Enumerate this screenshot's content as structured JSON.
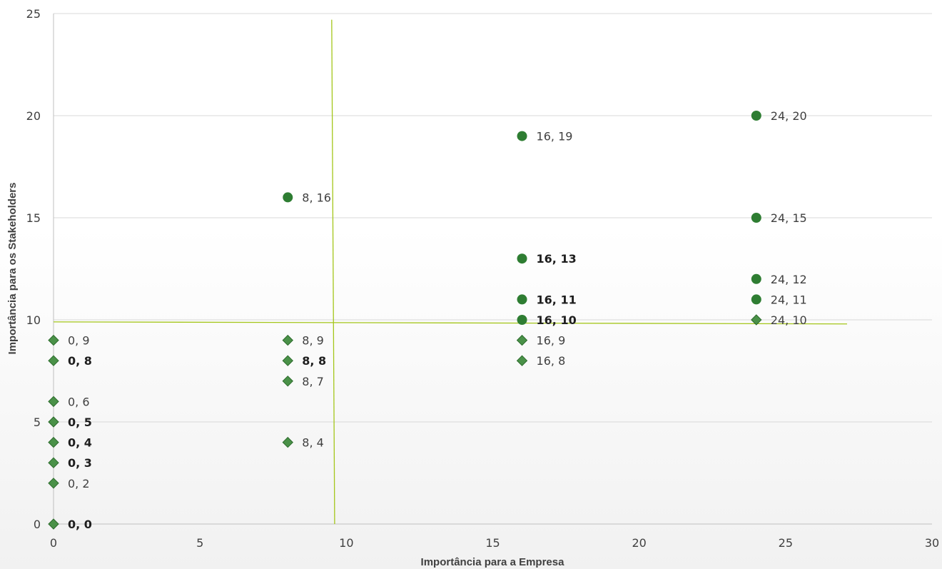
{
  "chart_data": {
    "type": "scatter",
    "title": "",
    "xlabel": "Importância para a Empresa",
    "ylabel": "Importância para os Stakeholders",
    "xlim": [
      0,
      30
    ],
    "ylim": [
      0,
      25
    ],
    "x_ticks": [
      0,
      5,
      10,
      15,
      20,
      25,
      30
    ],
    "y_ticks": [
      0,
      5,
      10,
      15,
      20,
      25
    ],
    "grid": "horizontal",
    "legend": "none",
    "colors": {
      "circle": "#2e7d32",
      "diamond": "#4a9148",
      "diamond_stroke": "#2c6b2c",
      "divider": "#a4c61a"
    },
    "dividers": [
      {
        "from": [
          9.5,
          24.7
        ],
        "to": [
          9.6,
          0
        ]
      },
      {
        "from": [
          0,
          9.9
        ],
        "to": [
          27.1,
          9.8
        ]
      }
    ],
    "series": [
      {
        "marker": "circle",
        "points": [
          {
            "x": 24,
            "y": 20,
            "label": "24, 20"
          },
          {
            "x": 16,
            "y": 19,
            "label": "16, 19"
          },
          {
            "x": 8,
            "y": 16,
            "label": "8, 16"
          },
          {
            "x": 24,
            "y": 15,
            "label": "24, 15"
          },
          {
            "x": 16,
            "y": 13,
            "label": "16, 13"
          },
          {
            "x": 24,
            "y": 12,
            "label": "24, 12"
          },
          {
            "x": 16,
            "y": 11,
            "label": "16, 11"
          },
          {
            "x": 24,
            "y": 11,
            "label": "24, 11"
          },
          {
            "x": 16,
            "y": 10,
            "label": "16, 10"
          }
        ]
      },
      {
        "marker": "diamond",
        "points": [
          {
            "x": 24,
            "y": 10,
            "label": "24, 10"
          },
          {
            "x": 0,
            "y": 9,
            "label": "0, 9"
          },
          {
            "x": 8,
            "y": 9,
            "label": "8, 9"
          },
          {
            "x": 16,
            "y": 9,
            "label": "16, 9"
          },
          {
            "x": 0,
            "y": 8,
            "label": "0, 8"
          },
          {
            "x": 8,
            "y": 8,
            "label": "8, 8"
          },
          {
            "x": 16,
            "y": 8,
            "label": "16, 8"
          },
          {
            "x": 8,
            "y": 7,
            "label": "8, 7"
          },
          {
            "x": 0,
            "y": 6,
            "label": "0, 6"
          },
          {
            "x": 0,
            "y": 5,
            "label": "0, 5"
          },
          {
            "x": 0,
            "y": 4,
            "label": "0, 4"
          },
          {
            "x": 8,
            "y": 4,
            "label": "8, 4"
          },
          {
            "x": 0,
            "y": 3,
            "label": "0, 3"
          },
          {
            "x": 0,
            "y": 2,
            "label": "0, 2"
          },
          {
            "x": 0,
            "y": 0,
            "label": "0, 0"
          }
        ]
      }
    ],
    "bold_labels": [
      "0, 8",
      "8, 8",
      "0, 5",
      "0, 4",
      "0, 3",
      "0, 0",
      "16, 13",
      "16, 11",
      "16, 10"
    ]
  }
}
